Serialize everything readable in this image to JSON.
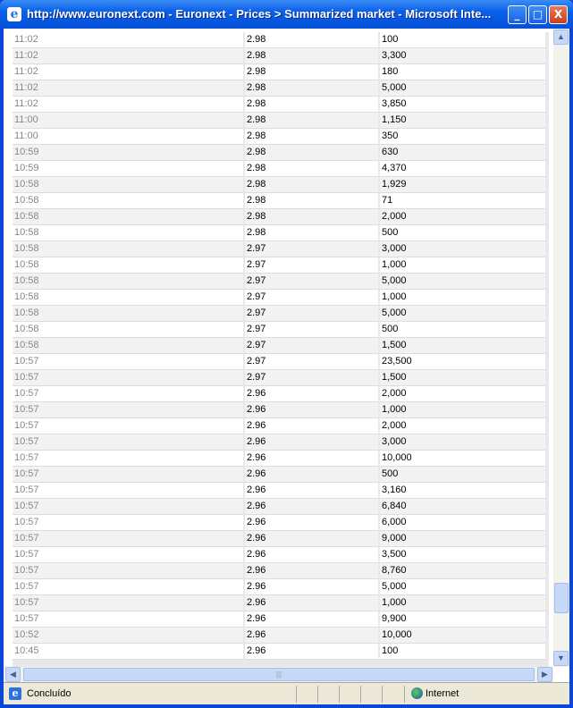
{
  "window": {
    "title": "http://www.euronext.com - Euronext - Prices > Summarized market - Microsoft Inte...",
    "minimize": "_",
    "maximize": "□",
    "close": "X"
  },
  "rows": [
    [
      "11:02",
      "2.98",
      "100"
    ],
    [
      "11:02",
      "2.98",
      "3,300"
    ],
    [
      "11:02",
      "2.98",
      "180"
    ],
    [
      "11:02",
      "2.98",
      "5,000"
    ],
    [
      "11:02",
      "2.98",
      "3,850"
    ],
    [
      "11:00",
      "2.98",
      "1,150"
    ],
    [
      "11:00",
      "2.98",
      "350"
    ],
    [
      "10:59",
      "2.98",
      "630"
    ],
    [
      "10:59",
      "2.98",
      "4,370"
    ],
    [
      "10:58",
      "2.98",
      "1,929"
    ],
    [
      "10:58",
      "2.98",
      "71"
    ],
    [
      "10:58",
      "2.98",
      "2,000"
    ],
    [
      "10:58",
      "2.98",
      "500"
    ],
    [
      "10:58",
      "2.97",
      "3,000"
    ],
    [
      "10:58",
      "2.97",
      "1,000"
    ],
    [
      "10:58",
      "2.97",
      "5,000"
    ],
    [
      "10:58",
      "2.97",
      "1,000"
    ],
    [
      "10:58",
      "2.97",
      "5,000"
    ],
    [
      "10:58",
      "2.97",
      "500"
    ],
    [
      "10:58",
      "2.97",
      "1,500"
    ],
    [
      "10:57",
      "2.97",
      "23,500"
    ],
    [
      "10:57",
      "2.97",
      "1,500"
    ],
    [
      "10:57",
      "2.96",
      "2,000"
    ],
    [
      "10:57",
      "2.96",
      "1,000"
    ],
    [
      "10:57",
      "2.96",
      "2,000"
    ],
    [
      "10:57",
      "2.96",
      "3,000"
    ],
    [
      "10:57",
      "2.96",
      "10,000"
    ],
    [
      "10:57",
      "2.96",
      "500"
    ],
    [
      "10:57",
      "2.96",
      "3,160"
    ],
    [
      "10:57",
      "2.96",
      "6,840"
    ],
    [
      "10:57",
      "2.96",
      "6,000"
    ],
    [
      "10:57",
      "2.96",
      "9,000"
    ],
    [
      "10:57",
      "2.96",
      "3,500"
    ],
    [
      "10:57",
      "2.96",
      "8,760"
    ],
    [
      "10:57",
      "2.96",
      "5,000"
    ],
    [
      "10:57",
      "2.96",
      "1,000"
    ],
    [
      "10:57",
      "2.96",
      "9,900"
    ],
    [
      "10:52",
      "2.96",
      "10,000"
    ],
    [
      "10:45",
      "2.96",
      "100"
    ]
  ],
  "status": {
    "text": "Concluído",
    "zone": "Internet"
  }
}
